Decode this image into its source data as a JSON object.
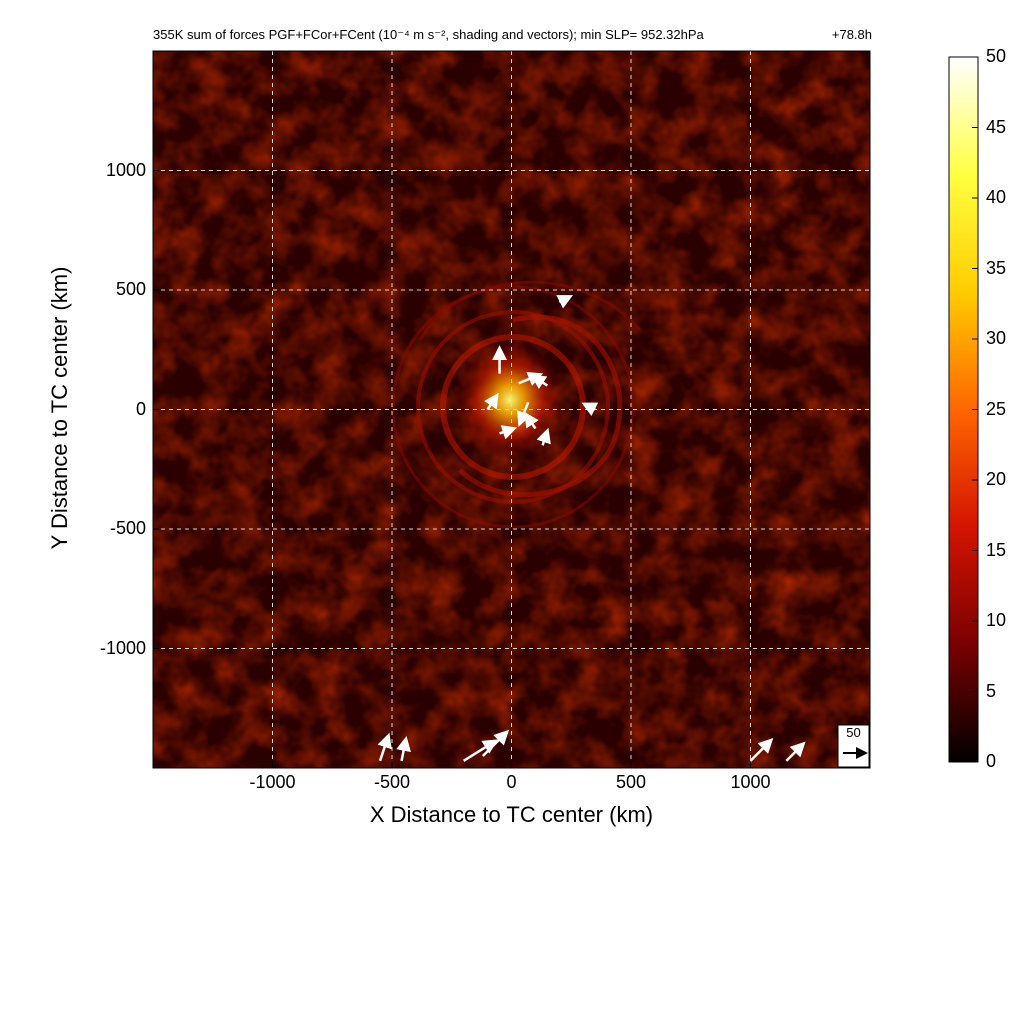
{
  "chart_data": {
    "type": "heatmap",
    "title": "355K sum of forces PGF+FCor+FCent (10⁻⁴ m s⁻², shading and vectors); min SLP= 952.32hPa",
    "time_label": "+78.8h",
    "xlabel": "X Distance to TC center (km)",
    "ylabel": "Y Distance to TC center (km)",
    "xlim": [
      -1500,
      1500
    ],
    "ylim": [
      -1500,
      1500
    ],
    "x_ticks": [
      "-1000",
      "-500",
      "0",
      "500",
      "1000"
    ],
    "y_ticks": [
      "1000",
      "500",
      "0",
      "-500",
      "-1000"
    ],
    "grid": true,
    "colorbar": {
      "range": [
        0,
        50
      ],
      "ticks": [
        "50",
        "45",
        "40",
        "35",
        "30",
        "25",
        "20",
        "15",
        "10",
        "5",
        "0"
      ],
      "colors": [
        "#000000",
        "#7a0000",
        "#d41400",
        "#ff6600",
        "#ffcc00",
        "#ffff40",
        "#ffffff"
      ]
    },
    "reference_vector": {
      "label": "50"
    },
    "field_description": "spiral band pattern around TC center with maximum (~40) just north-east of center",
    "vectors": [
      {
        "x": -50,
        "y": 150,
        "u": 0,
        "v": 30
      },
      {
        "x": 30,
        "y": 110,
        "u": 25,
        "v": 10
      },
      {
        "x": 70,
        "y": 30,
        "u": -10,
        "v": -25
      },
      {
        "x": -100,
        "y": 0,
        "u": 10,
        "v": 15
      },
      {
        "x": 100,
        "y": -80,
        "u": -10,
        "v": 15
      },
      {
        "x": -50,
        "y": -100,
        "u": 15,
        "v": 5
      },
      {
        "x": 150,
        "y": 100,
        "u": -15,
        "v": 10
      },
      {
        "x": 130,
        "y": -150,
        "u": 5,
        "v": 15
      },
      {
        "x": -550,
        "y": -1470,
        "u": 10,
        "v": 30
      },
      {
        "x": -200,
        "y": -1470,
        "u": 40,
        "v": 25
      },
      {
        "x": -120,
        "y": -1450,
        "u": 30,
        "v": 30
      },
      {
        "x": 1000,
        "y": -1470,
        "u": 25,
        "v": 25
      },
      {
        "x": 1150,
        "y": -1470,
        "u": 20,
        "v": 20
      },
      {
        "x": -460,
        "y": -1470,
        "u": 5,
        "v": 25
      },
      {
        "x": 200,
        "y": 450,
        "u": 10,
        "v": 5
      },
      {
        "x": 350,
        "y": 0,
        "u": -10,
        "v": 5
      }
    ]
  }
}
